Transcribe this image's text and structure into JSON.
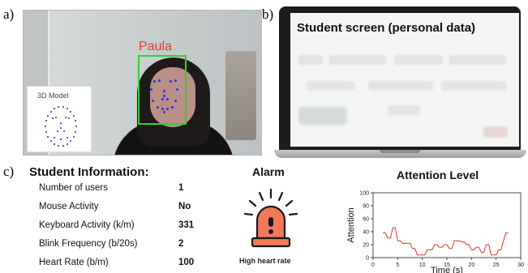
{
  "labels": {
    "a": "a)",
    "b": "b)",
    "c": "c)"
  },
  "panel_a": {
    "person_name": "Paula",
    "model_title": "3D Model",
    "colors": {
      "bbox": "#2fd12f",
      "name": "#e23b3b",
      "landmarks": "#2a35d6"
    }
  },
  "panel_b": {
    "screen_title": "Student screen (personal data)"
  },
  "student_info": {
    "title": "Student Information:",
    "rows": [
      {
        "label": "Number of users",
        "value": "1"
      },
      {
        "label": "Mouse Activity",
        "value": "No"
      },
      {
        "label": "Keyboard Activity (k/m)",
        "value": "331"
      },
      {
        "label": "Blink Frequency (b/20s)",
        "value": "2"
      },
      {
        "label": "Heart Rate (b/m)",
        "value": "100"
      }
    ]
  },
  "alarm": {
    "title": "Alarm",
    "icon": "siren-icon",
    "caption": "High heart rate",
    "colors": {
      "siren": "#f2795a",
      "stroke": "#1a1a1a"
    }
  },
  "chart_data": {
    "type": "line",
    "title": "Attention Level",
    "xlabel": "Time (s)",
    "ylabel": "Attention",
    "xlim": [
      0,
      30
    ],
    "ylim": [
      0,
      100
    ],
    "xticks": [
      0,
      5,
      10,
      15,
      20,
      25,
      30
    ],
    "yticks": [
      0,
      20,
      40,
      60,
      80,
      100
    ],
    "series": [
      {
        "color": "#d9392b",
        "x": [
          2,
          2.5,
          3,
          3.5,
          4,
          4.5,
          5,
          5.5,
          6,
          6.5,
          7,
          7.5,
          8,
          8.5,
          9,
          9.5,
          10,
          10.5,
          11,
          11.5,
          12,
          12.5,
          13,
          13.5,
          14,
          14.5,
          15,
          15.5,
          16,
          16.5,
          17,
          17.5,
          18,
          18.5,
          19,
          19.5,
          20,
          20.5,
          21,
          21.5,
          22,
          22.5,
          23,
          23.5,
          24,
          24.5,
          25,
          25.5,
          26,
          26.5,
          27,
          27.5
        ],
        "y": [
          38,
          38,
          30,
          30,
          46,
          46,
          26,
          26,
          22,
          22,
          22,
          22,
          14,
          14,
          4,
          4,
          4,
          4,
          12,
          12,
          12,
          20,
          20,
          16,
          16,
          20,
          20,
          14,
          14,
          26,
          26,
          26,
          24,
          24,
          20,
          20,
          12,
          12,
          16,
          16,
          8,
          8,
          20,
          20,
          4,
          4,
          4,
          12,
          12,
          26,
          38,
          38
        ]
      }
    ]
  }
}
